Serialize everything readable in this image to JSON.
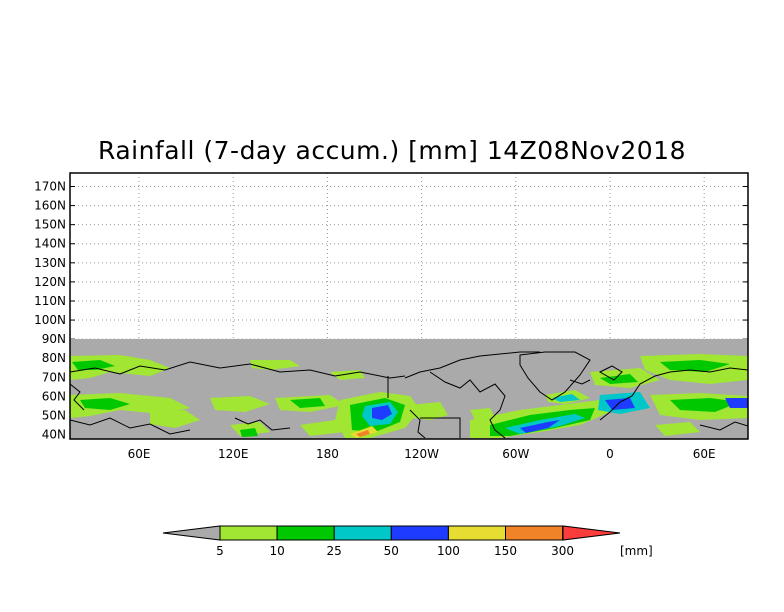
{
  "title": "Rainfall (7-day accum.) [mm] 14Z08Nov2018",
  "map": {
    "lat_labels": [
      "170N",
      "160N",
      "150N",
      "140N",
      "130N",
      "120N",
      "110N",
      "100N",
      "90N",
      "80N",
      "70N",
      "60N",
      "50N",
      "40N"
    ],
    "lon_labels": [
      "60E",
      "120E",
      "180",
      "120W",
      "60W",
      "0",
      "60E"
    ],
    "no_data_color": "#aaaaaa",
    "coastline_color": "#000000"
  },
  "colorbar": {
    "unit": "[mm]",
    "levels": [
      "5",
      "10",
      "25",
      "50",
      "100",
      "150",
      "300"
    ],
    "colors": [
      "#aaaaaa",
      "#a0e632",
      "#00c800",
      "#00c8c8",
      "#1e3cff",
      "#e6dc32",
      "#f08228",
      "#fa3c3c"
    ]
  }
}
